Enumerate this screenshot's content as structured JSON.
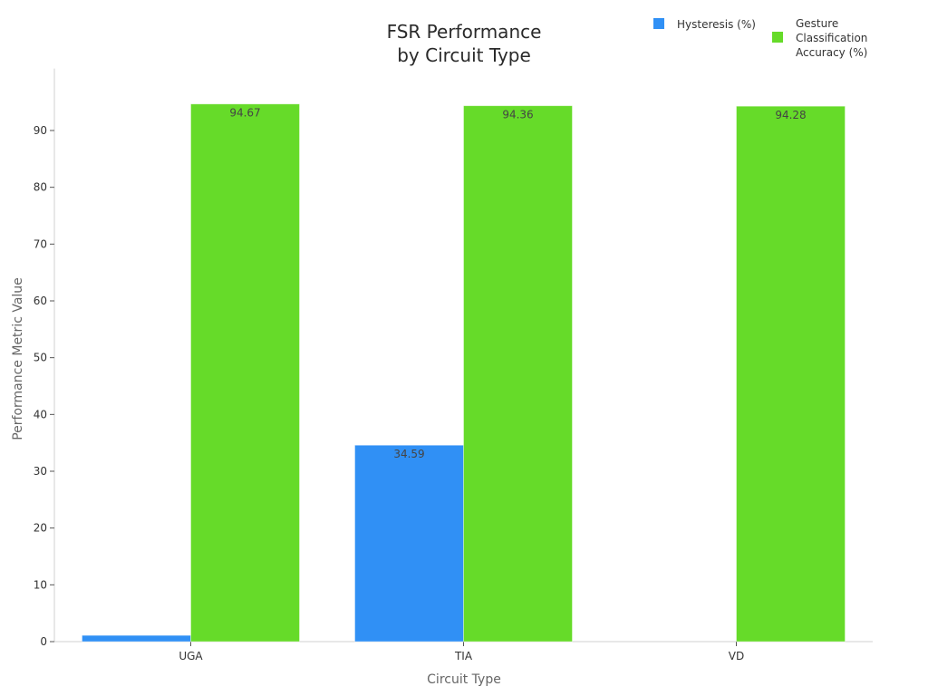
{
  "chart_data": {
    "type": "bar",
    "title": "FSR Performance by Circuit Type",
    "title_lines": [
      "FSR Performance",
      "by Circuit Type"
    ],
    "xlabel": "Circuit Type",
    "ylabel": "Performance Metric Value",
    "categories": [
      "UGA",
      "TIA",
      "VD"
    ],
    "series": [
      {
        "name": "Hysteresis (%)",
        "color": "#3090f5",
        "values": [
          1.1,
          34.59,
          null
        ],
        "labels": [
          null,
          "34.59",
          null
        ]
      },
      {
        "name": "Gesture Classification Accuracy (%)",
        "color": "#66db29",
        "values": [
          94.67,
          94.36,
          94.28
        ],
        "labels": [
          "94.67",
          "94.36",
          "94.28"
        ]
      }
    ],
    "ylim": [
      0,
      99
    ],
    "yticks": [
      0,
      10,
      20,
      30,
      40,
      50,
      60,
      70,
      80,
      90
    ],
    "grid": false,
    "legend_position": "top-right"
  },
  "legend": {
    "items": [
      {
        "label_lines": [
          "Hysteresis (%)"
        ],
        "color": "#3090f5"
      },
      {
        "label_lines": [
          "Gesture",
          "Classification",
          "Accuracy (%)"
        ],
        "color": "#66db29"
      }
    ]
  }
}
